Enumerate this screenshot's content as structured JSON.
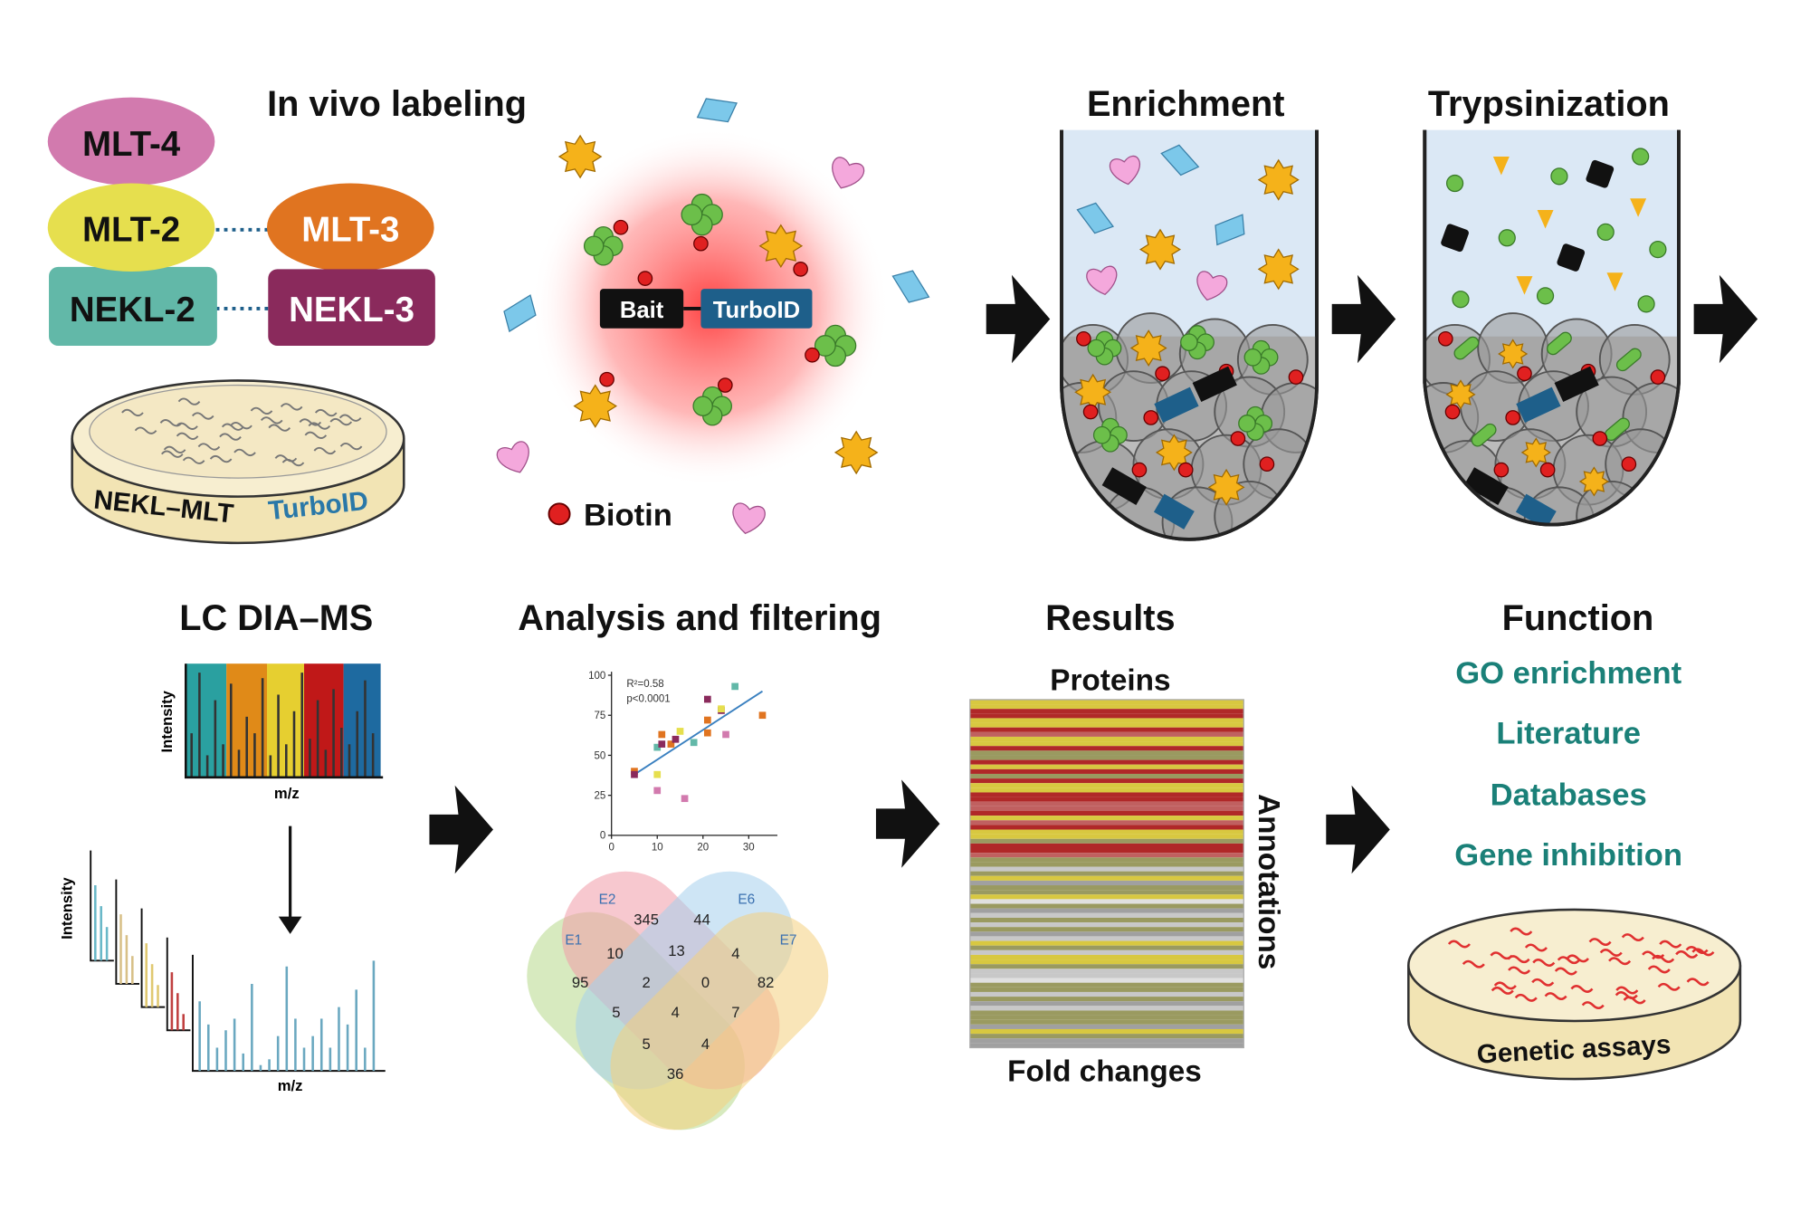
{
  "titles": {
    "in_vivo": "In vivo labeling",
    "enrichment": "Enrichment",
    "trypsinization": "Trypsinization",
    "lc_ms": "LC DIA–MS",
    "analysis": "Analysis and filtering",
    "results": "Results",
    "function": "Function"
  },
  "complex": {
    "mlt4": "MLT-4",
    "mlt2": "MLT-2",
    "mlt3": "MLT-3",
    "nekl2": "NEKL-2",
    "nekl3": "NEKL-3",
    "dish_label_a": "NEKL–MLT",
    "dish_label_b": "TurboID"
  },
  "labeling": {
    "bait": "Bait",
    "turboid": "TurboID",
    "biotin": "Biotin"
  },
  "spectra": {
    "ylabel": "Intensity",
    "xlabel": "m/z"
  },
  "results": {
    "proteins": "Proteins",
    "annotations": "Annotations",
    "fold_changes": "Fold changes"
  },
  "function_items": [
    "GO enrichment",
    "Literature",
    "Databases",
    "Gene inhibition"
  ],
  "assay_label": "Genetic assays",
  "venn": {
    "sets": [
      "E1",
      "E2",
      "E6",
      "E7"
    ],
    "counts": [
      "345",
      "44",
      "10",
      "13",
      "4",
      "95",
      "2",
      "0",
      "82",
      "5",
      "4",
      "7",
      "5",
      "4",
      "36"
    ]
  },
  "colors": {
    "teal_text": "#1a8078",
    "turboid": "#1e5f8a",
    "biotin": "#e02020",
    "mlt4": "#d27aae",
    "mlt2": "#e6df4e",
    "mlt3": "#e07420",
    "nekl2": "#62b8a8",
    "nekl3": "#8a2a5c"
  },
  "chart_data": {
    "type": "scatter",
    "annotation_r2": "R²=0.58",
    "annotation_p": "p<0.0001",
    "xlim": [
      0,
      35
    ],
    "ylim": [
      0,
      100
    ],
    "xticks": [
      "0",
      "10",
      "20",
      "30"
    ],
    "yticks": [
      "0",
      "25",
      "50",
      "75",
      "100"
    ],
    "points": [
      [
        5,
        40
      ],
      [
        5,
        38
      ],
      [
        10,
        38
      ],
      [
        10,
        28
      ],
      [
        10,
        55
      ],
      [
        11,
        63
      ],
      [
        11,
        57
      ],
      [
        13,
        57
      ],
      [
        14,
        60
      ],
      [
        15,
        65
      ],
      [
        16,
        23
      ],
      [
        18,
        58
      ],
      [
        21,
        72
      ],
      [
        21,
        85
      ],
      [
        21,
        64
      ],
      [
        24,
        78
      ],
      [
        24,
        79
      ],
      [
        25,
        63
      ],
      [
        27,
        93
      ],
      [
        33,
        75
      ]
    ],
    "fit": [
      [
        5,
        38
      ],
      [
        33,
        90
      ]
    ]
  }
}
